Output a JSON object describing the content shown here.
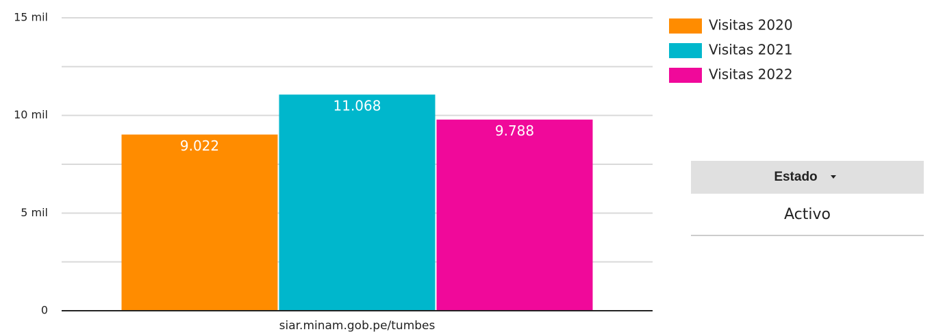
{
  "chart_data": {
    "type": "bar",
    "categories": [
      "siar.minam.gob.pe/tumbes"
    ],
    "series": [
      {
        "name": "Visitas 2020",
        "color": "#ff8c00",
        "values": [
          9022
        ],
        "value_labels": [
          "9.022"
        ]
      },
      {
        "name": "Visitas 2021",
        "color": "#00b7cc",
        "values": [
          11068
        ],
        "value_labels": [
          "11.068"
        ]
      },
      {
        "name": "Visitas 2022",
        "color": "#f0099a",
        "values": [
          9788
        ],
        "value_labels": [
          "9.788"
        ]
      }
    ],
    "ylim": [
      0,
      15000
    ],
    "yticks": [
      0,
      {
        "value": 5000,
        "label": "5 mil"
      },
      {
        "value": 10000,
        "label": "10 mil"
      },
      {
        "value": 15000,
        "label": "15 mil"
      }
    ],
    "minor_yticks": [
      2500,
      7500,
      12500
    ],
    "grid": true,
    "legend": "right"
  },
  "control": {
    "header": "Estado",
    "rows": [
      "Activo"
    ]
  }
}
